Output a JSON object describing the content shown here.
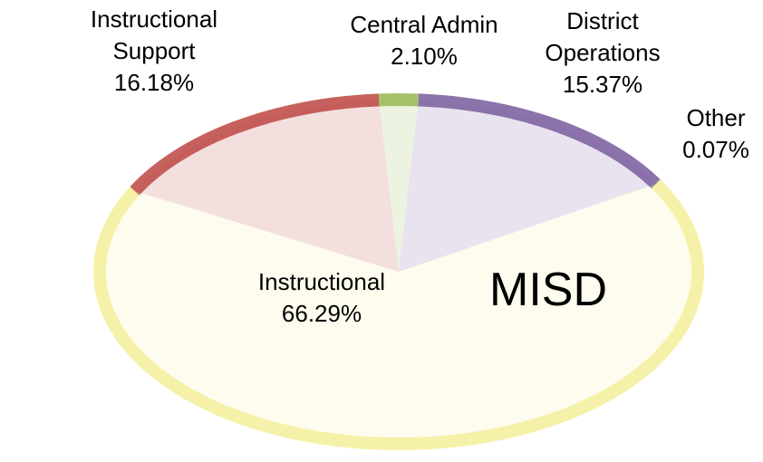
{
  "chart_data": {
    "type": "pie",
    "title": "MISD",
    "categories": [
      "Instructional Support",
      "Central Admin",
      "District Operations",
      "Other",
      "Instructional"
    ],
    "values": [
      16.18,
      2.1,
      15.37,
      0.07,
      66.29
    ],
    "value_labels": [
      "16.18%",
      "2.10%",
      "15.37%",
      "0.07%",
      "66.29%"
    ],
    "colors": [
      "#c0504d",
      "#9bbb59",
      "#8064a2",
      "#7f7f7f",
      "#f5f0a0"
    ]
  }
}
